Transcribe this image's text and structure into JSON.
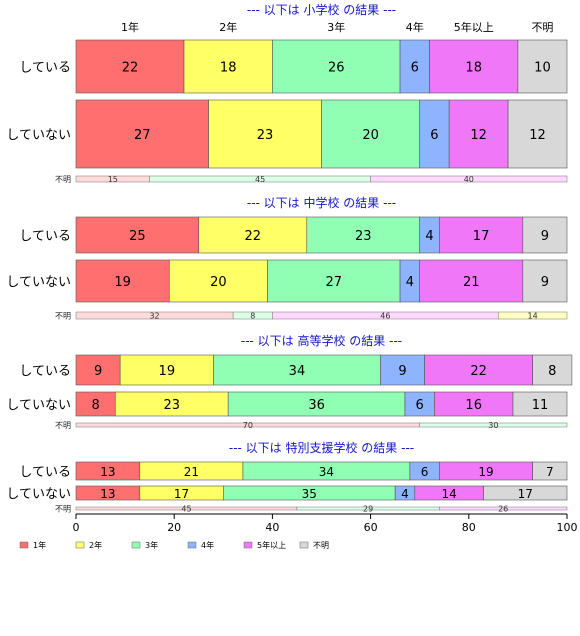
{
  "chart_data": {
    "type": "bar",
    "orientation": "horizontal",
    "stacked": true,
    "xlim": [
      0,
      100
    ],
    "xticks": [
      "0",
      "20",
      "40",
      "60",
      "80",
      "100"
    ],
    "categories": [
      "1年",
      "2年",
      "3年",
      "4年",
      "5年以上",
      "不明"
    ],
    "colors": [
      "#FF6F6F",
      "#FFFF66",
      "#90FFB4",
      "#8FB4FF",
      "#F078F8",
      "#D8D8D8"
    ],
    "legend_position": "bottom-left",
    "panels": [
      {
        "title": "--- 以下は 小学校 の結果 ---",
        "show_category_header": true,
        "rows": [
          {
            "label": "している",
            "values": [
              22,
              18,
              26,
              6,
              18,
              10
            ]
          },
          {
            "label": "していない",
            "values": [
              27,
              23,
              20,
              6,
              12,
              12
            ]
          }
        ],
        "unknown": {
          "label": "不明",
          "values": [
            15,
            45,
            40
          ]
        }
      },
      {
        "title": "--- 以下は 中学校 の結果 ---",
        "show_category_header": false,
        "rows": [
          {
            "label": "している",
            "values": [
              25,
              22,
              23,
              4,
              17,
              9
            ]
          },
          {
            "label": "していない",
            "values": [
              19,
              20,
              27,
              4,
              21,
              9
            ]
          }
        ],
        "unknown": {
          "label": "不明",
          "values": [
            32,
            8,
            46,
            14
          ]
        }
      },
      {
        "title": "--- 以下は 高等学校 の結果 ---",
        "show_category_header": false,
        "rows": [
          {
            "label": "している",
            "values": [
              9,
              19,
              34,
              9,
              22,
              8
            ]
          },
          {
            "label": "していない",
            "values": [
              8,
              23,
              36,
              6,
              16,
              11
            ]
          }
        ],
        "unknown": {
          "label": "不明",
          "values": [
            70,
            30
          ]
        }
      },
      {
        "title": "--- 以下は 特別支援学校 の結果 ---",
        "show_category_header": false,
        "rows": [
          {
            "label": "している",
            "values": [
              13,
              21,
              34,
              6,
              19,
              7
            ]
          },
          {
            "label": "していない",
            "values": [
              13,
              17,
              35,
              4,
              14,
              17
            ]
          }
        ],
        "unknown": {
          "label": "不明",
          "values": [
            45,
            29,
            26
          ]
        }
      }
    ]
  }
}
